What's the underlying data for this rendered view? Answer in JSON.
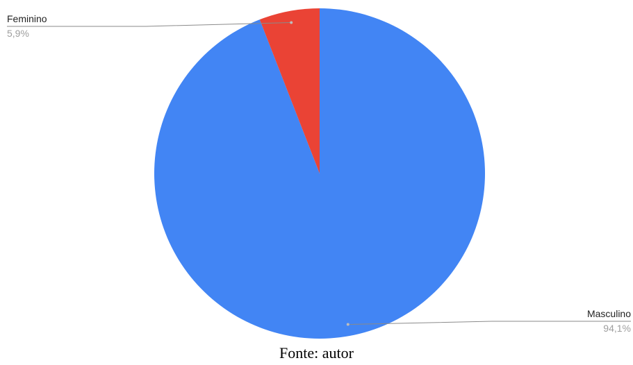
{
  "chart_data": {
    "type": "pie",
    "slices": [
      {
        "name": "Masculino",
        "value": 94.1,
        "label": "94,1%",
        "color": "#4285f4"
      },
      {
        "name": "Feminino",
        "value": 5.9,
        "label": "5,9%",
        "color": "#ea4335"
      }
    ],
    "title": "",
    "legend": "none"
  },
  "caption": "Fonte: autor"
}
